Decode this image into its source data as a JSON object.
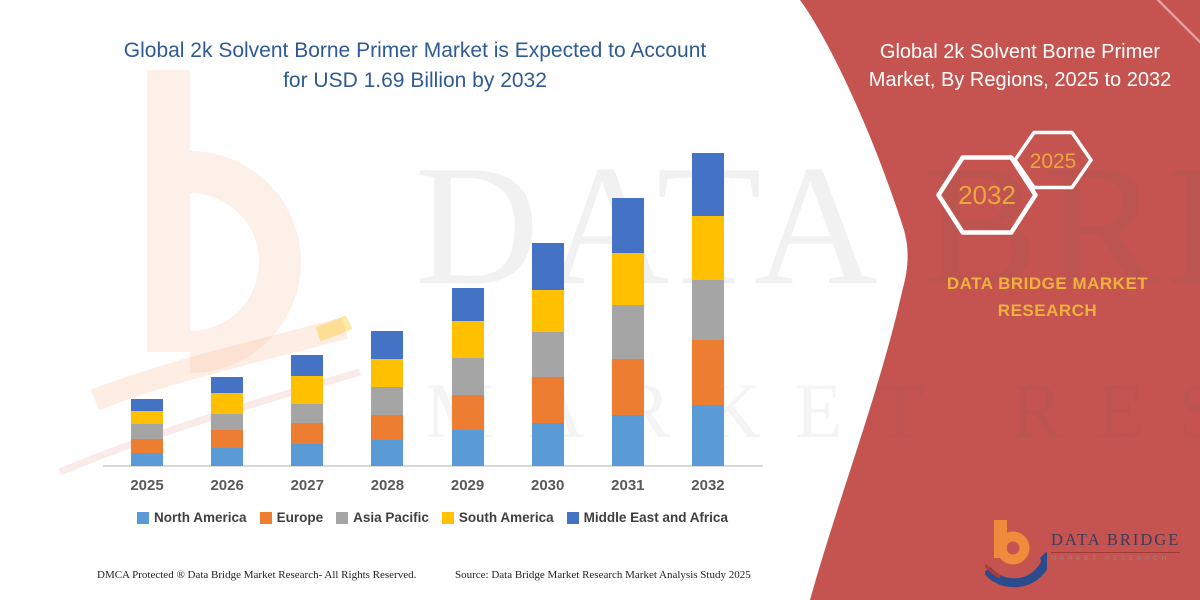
{
  "title": {
    "line1": "Global 2k Solvent Borne Primer Market is Expected to Account",
    "line2": "for USD 1.69 Billion by 2032",
    "color": "#2E5B94"
  },
  "chart_data": {
    "type": "bar",
    "stacked": true,
    "unit": "USD Billion",
    "title": "Global 2k Solvent Borne Primer Market is Expected to Account for USD 1.69 Billion by 2032",
    "categories": [
      "2025",
      "2026",
      "2027",
      "2028",
      "2029",
      "2030",
      "2031",
      "2032"
    ],
    "series": [
      {
        "name": "North America",
        "color": "#5B9BD5",
        "values": [
          0.07,
          0.099,
          0.121,
          0.142,
          0.193,
          0.233,
          0.274,
          0.332
        ]
      },
      {
        "name": "Europe",
        "color": "#ED7D31",
        "values": [
          0.077,
          0.097,
          0.112,
          0.132,
          0.189,
          0.249,
          0.307,
          0.348
        ]
      },
      {
        "name": "Asia Pacific",
        "color": "#A5A5A5",
        "values": [
          0.081,
          0.087,
          0.104,
          0.153,
          0.202,
          0.244,
          0.292,
          0.325
        ]
      },
      {
        "name": "South America",
        "color": "#FFC000",
        "values": [
          0.067,
          0.112,
          0.15,
          0.153,
          0.199,
          0.226,
          0.28,
          0.346
        ]
      },
      {
        "name": "Middle East and Africa",
        "color": "#4472C4",
        "values": [
          0.067,
          0.085,
          0.115,
          0.148,
          0.177,
          0.253,
          0.294,
          0.339
        ]
      }
    ],
    "totals": [
      0.36,
      0.48,
      0.6,
      0.73,
      0.96,
      1.2,
      1.45,
      1.69
    ],
    "ylim": [
      0,
      1.69
    ],
    "grid": false,
    "legend_position": "bottom",
    "xlabel": "",
    "ylabel": ""
  },
  "right_panel": {
    "bg_color": "#C5534F",
    "title_line1": "Global 2k Solvent Borne Primer",
    "title_line2": "Market, By Regions, 2025 to 2032",
    "hexagons": [
      {
        "label": "2032"
      },
      {
        "label": "2025"
      }
    ],
    "hex_label_color": "#E8A83E",
    "brand_line1": "DATA BRIDGE MARKET",
    "brand_line2": "RESEARCH",
    "brand_color": "#EFB13E"
  },
  "logo": {
    "wordmark": "DATA BRIDGE",
    "subtitle": "MARKET RESEARCH"
  },
  "watermark": {
    "line1": "DATA BRIDGE",
    "line2": "MARKET RESEARCH"
  },
  "footer": {
    "dmca": "DMCA Protected ® Data Bridge Market Research-  All Rights Reserved.",
    "source": "Source: Data Bridge Market Research  Market Analysis Study 2025"
  }
}
